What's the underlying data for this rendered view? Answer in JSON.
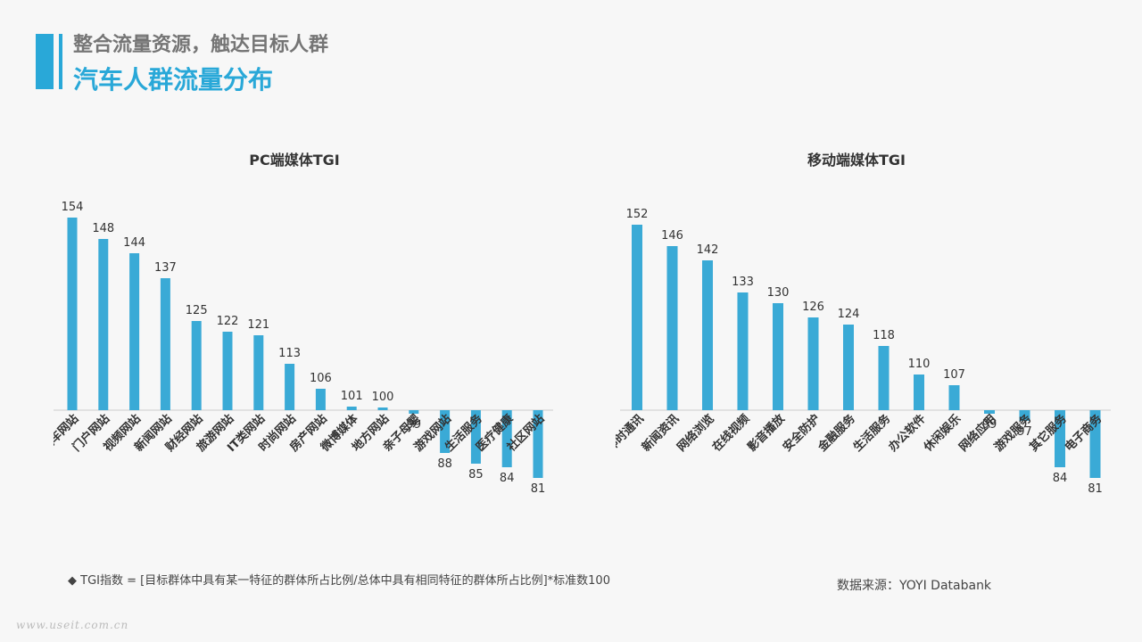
{
  "header": {
    "subtitle": "整合流量资源，触达目标人群",
    "title": "汽车人群流量分布"
  },
  "colors": {
    "accent": "#29a8d8",
    "bar": "#3aaad6",
    "text": "#333333"
  },
  "chart_data": [
    {
      "type": "bar",
      "title": "PC端媒体TGI",
      "baseline": 100,
      "categories": [
        "汽车网站",
        "门户网站",
        "视频网站",
        "新闻网站",
        "财经网站",
        "旅游网站",
        "IT类网站",
        "时尚网站",
        "房产网站",
        "微博媒体",
        "地方网站",
        "亲子母婴",
        "游戏网站",
        "生活服务",
        "医疗健康",
        "社区网站"
      ],
      "values": [
        154,
        148,
        144,
        137,
        125,
        122,
        121,
        113,
        106,
        101,
        100,
        99,
        88,
        85,
        84,
        81
      ],
      "ylim": [
        81,
        154
      ],
      "grid": false,
      "legend": "none"
    },
    {
      "type": "bar",
      "title": "移动端媒体TGI",
      "baseline": 100,
      "categories": [
        "即时通讯",
        "新闻资讯",
        "网络浏览",
        "在线视频",
        "影音播放",
        "安全防护",
        "金融服务",
        "生活服务",
        "办公软件",
        "休闲娱乐",
        "网络应用",
        "游戏服务",
        "其它服务",
        "电子商务"
      ],
      "values": [
        152,
        146,
        142,
        133,
        130,
        126,
        124,
        118,
        110,
        107,
        99,
        97,
        84,
        81
      ],
      "ylim": [
        81,
        152
      ],
      "grid": false,
      "legend": "none"
    }
  ],
  "footer": {
    "footnote": "◆  TGI指数 = [目标群体中具有某一特征的群体所占比例/总体中具有相同特征的群体所占比例]*标准数100",
    "source": "数据来源：YOYI  Databank",
    "watermark": "www.useit.com.cn"
  }
}
